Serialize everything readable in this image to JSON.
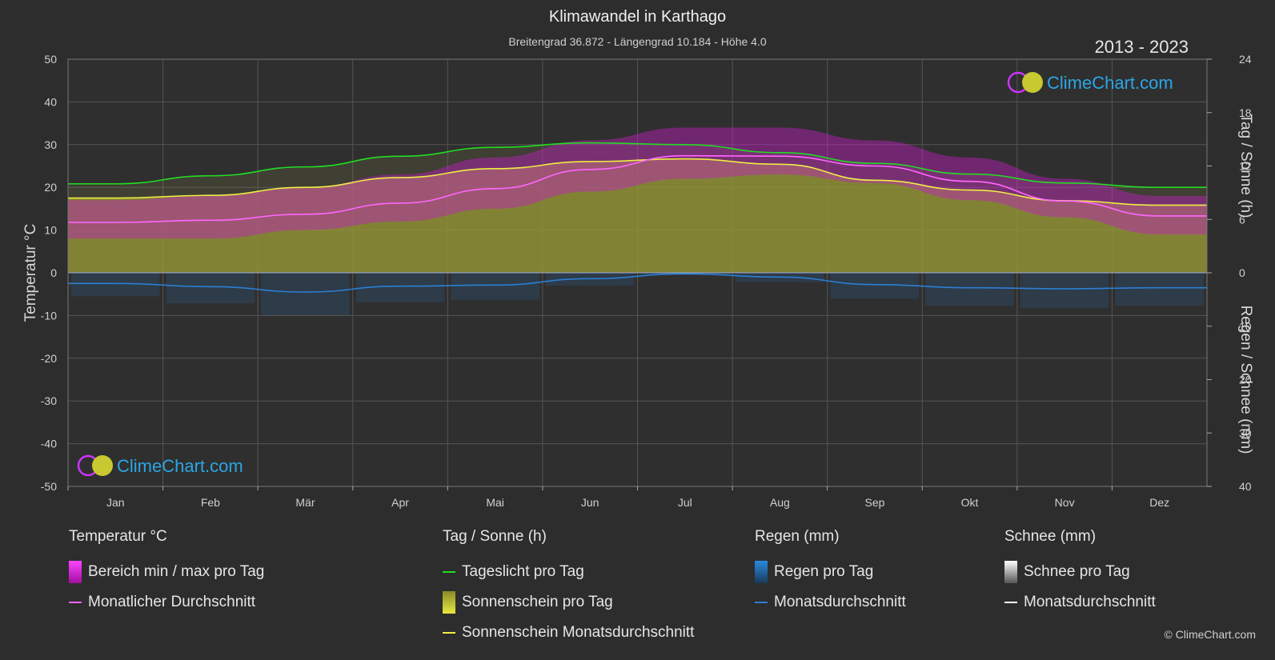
{
  "title": "Klimawandel in Karthago",
  "subtitle": "Breitengrad 36.872 - Längengrad 10.184 - Höhe 4.0",
  "years": "2013 - 2023",
  "logo_text": "ClimeChart.com",
  "copyright": "© ClimeChart.com",
  "colors": {
    "background": "#2d2d2d",
    "temp_range": "#c020c0",
    "temp_avg": "#ff66ff",
    "daylight": "#22dd22",
    "sunshine_fill": "#a0a030",
    "sunshine_avg": "#eeee44",
    "rain": "#2a7fd4",
    "snow_avg": "#ffffff"
  },
  "legend": {
    "temp": {
      "title": "Temperatur °C",
      "range_label": "Bereich min / max pro Tag",
      "avg_label": "Monatlicher Durchschnitt"
    },
    "sun": {
      "title": "Tag / Sonne (h)",
      "daylight_label": "Tageslicht pro Tag",
      "sunshine_label": "Sonnenschein pro Tag",
      "sunshine_avg_label": "Sonnenschein Monatsdurchschnitt"
    },
    "rain": {
      "title": "Regen (mm)",
      "rain_label": "Regen pro Tag",
      "avg_label": "Monatsdurchschnitt"
    },
    "snow": {
      "title": "Schnee (mm)",
      "snow_label": "Schnee pro Tag",
      "avg_label": "Monatsdurchschnitt"
    }
  },
  "chart_data": {
    "type": "area",
    "title": "Klimawandel in Karthago",
    "categories": [
      "Jan",
      "Feb",
      "Mär",
      "Apr",
      "Mai",
      "Jun",
      "Jul",
      "Aug",
      "Sep",
      "Okt",
      "Nov",
      "Dez"
    ],
    "y_left": {
      "label": "Temperatur °C",
      "range": [
        -50,
        50
      ],
      "ticks": [
        50,
        40,
        30,
        20,
        10,
        0,
        -10,
        -20,
        -30,
        -40,
        -50
      ]
    },
    "y_right_top": {
      "label": "Tag / Sonne (h)",
      "range": [
        0,
        24
      ],
      "ticks": [
        24,
        18,
        12,
        6,
        0
      ]
    },
    "y_right_bottom": {
      "label": "Regen / Schnee (mm)",
      "range": [
        0,
        40
      ],
      "ticks": [
        0,
        10,
        20,
        30,
        40
      ]
    },
    "grid": true,
    "series": [
      {
        "name": "Bereich min / max pro Tag",
        "unit": "°C",
        "min": [
          8,
          8,
          10,
          12,
          15,
          19,
          22,
          23,
          21,
          17,
          13,
          9
        ],
        "max": [
          17,
          18,
          20,
          23,
          27,
          31,
          34,
          34,
          31,
          27,
          22,
          18
        ]
      },
      {
        "name": "Monatlicher Durchschnitt",
        "unit": "°C",
        "values": [
          11.8,
          12.3,
          13.7,
          16.3,
          19.7,
          24.2,
          27.4,
          27.3,
          25.0,
          21.4,
          16.8,
          13.3
        ]
      },
      {
        "name": "Tageslicht pro Tag",
        "unit": "h",
        "values": [
          10.0,
          10.9,
          11.9,
          13.1,
          14.1,
          14.6,
          14.4,
          13.5,
          12.3,
          11.1,
          10.1,
          9.6
        ]
      },
      {
        "name": "Sonnenschein Monatsdurchschnitt",
        "unit": "h",
        "values": [
          8.4,
          8.7,
          9.6,
          10.7,
          11.7,
          12.5,
          12.8,
          12.2,
          10.4,
          9.3,
          8.1,
          7.6
        ]
      },
      {
        "name": "Regen Monatsdurchschnitt",
        "unit": "mm",
        "values": [
          2.0,
          2.6,
          3.6,
          2.5,
          2.3,
          1.1,
          0.2,
          0.8,
          2.2,
          2.8,
          3.0,
          2.8
        ]
      },
      {
        "name": "Schnee Monatsdurchschnitt",
        "unit": "mm",
        "values": [
          0,
          0,
          0,
          0,
          0,
          0,
          0,
          0,
          0,
          0,
          0,
          0
        ]
      }
    ]
  }
}
